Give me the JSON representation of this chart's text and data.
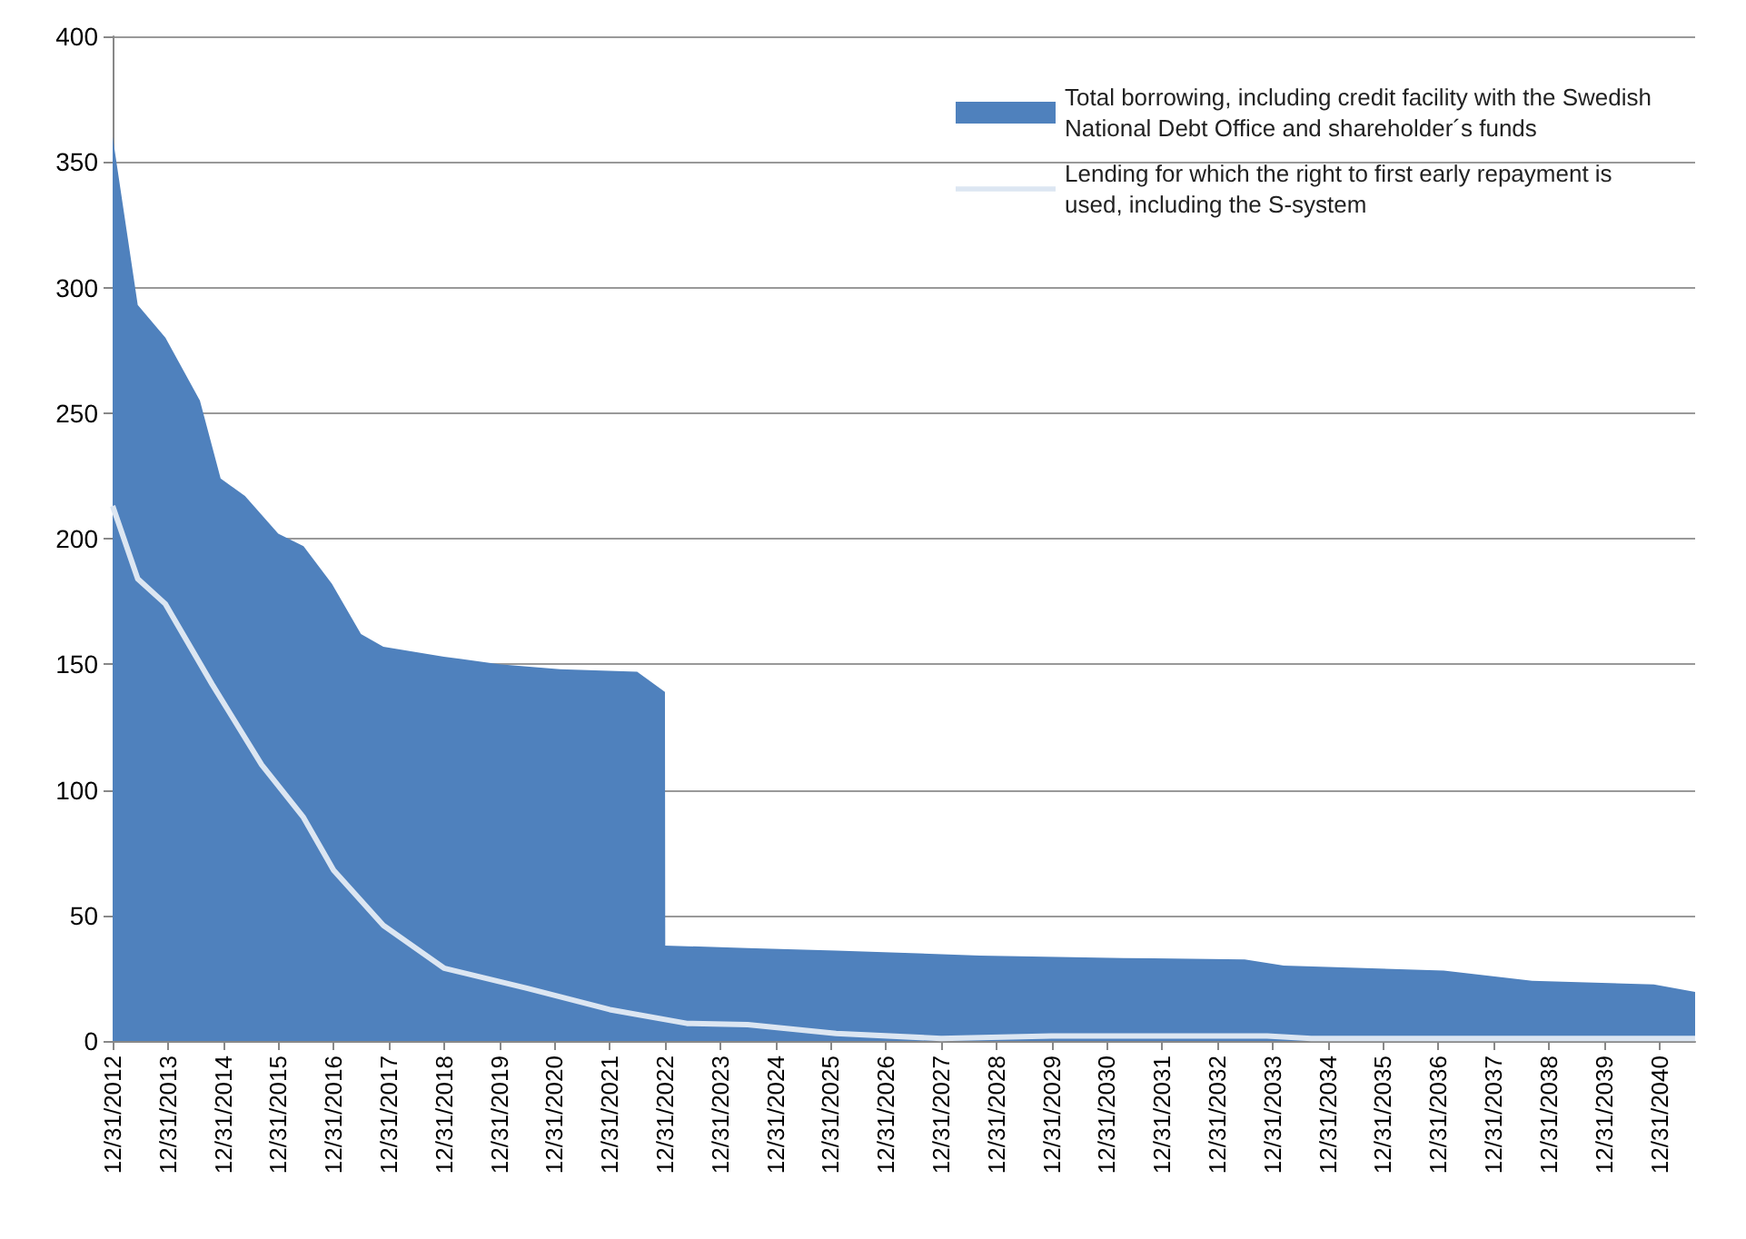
{
  "chart_data": {
    "type": "area",
    "series": [
      {
        "name": "Total borrowing, including credit facility with the Swedish National Debt Office and shareholder´s funds",
        "color": "#4f81bd",
        "x": [
          "2012-12-31",
          "2013-06-15",
          "2013-12-15",
          "2014-07-31",
          "2014-12-15",
          "2015-05-25",
          "2015-12-31",
          "2016-06-15",
          "2016-12-20",
          "2017-06-30",
          "2017-11-25",
          "2018-12-31",
          "2019-12-31",
          "2021-02-05",
          "2022-06-30",
          "2022-12-31",
          "2023-01-02",
          "2024-06-30",
          "2026-02-05",
          "2028-09-12",
          "2031-04-20",
          "2033-06-30",
          "2034-03-15",
          "2037-02-05",
          "2038-09-12",
          "2040-11-25",
          "2041-08-25"
        ],
        "values": [
          360,
          293,
          280,
          255,
          224,
          217,
          202,
          197,
          182,
          162,
          157,
          153,
          150,
          148,
          147,
          139,
          38,
          37,
          36,
          34,
          33,
          32.5,
          30,
          28,
          24,
          22.5,
          19.5
        ]
      },
      {
        "name": "Lending for which the right to first early repayment is used, including the S-system",
        "type": "line",
        "color": "#dce6f2",
        "x": [
          "2012-12-31",
          "2013-06-15",
          "2013-12-15",
          "2014-10-20",
          "2015-09-12",
          "2016-06-15",
          "2016-12-31",
          "2017-11-25",
          "2018-12-31",
          "2020-06-30",
          "2021-12-31",
          "2023-05-25",
          "2024-06-30",
          "2026-02-05",
          "2027-12-31",
          "2029-12-31",
          "2033-11-25",
          "2034-09-12",
          "2041-08-25"
        ],
        "values": [
          213,
          184,
          174,
          142,
          110,
          89,
          68,
          46,
          29,
          21,
          12.5,
          7,
          6.5,
          3,
          1,
          2,
          2,
          1,
          1
        ]
      }
    ],
    "xlim": [
      "2012-12-31",
      "2041-08-25"
    ],
    "xticks": [
      {
        "value": "2012-12-31",
        "label": "12/31/2012"
      },
      {
        "value": "2013-12-31",
        "label": "12/31/2013"
      },
      {
        "value": "2014-12-31",
        "label": "12/31/2014"
      },
      {
        "value": "2015-12-31",
        "label": "12/31/2015"
      },
      {
        "value": "2016-12-31",
        "label": "12/31/2016"
      },
      {
        "value": "2017-12-31",
        "label": "12/31/2017"
      },
      {
        "value": "2018-12-31",
        "label": "12/31/2018"
      },
      {
        "value": "2019-12-31",
        "label": "12/31/2019"
      },
      {
        "value": "2020-12-31",
        "label": "12/31/2020"
      },
      {
        "value": "2021-12-31",
        "label": "12/31/2021"
      },
      {
        "value": "2022-12-31",
        "label": "12/31/2022"
      },
      {
        "value": "2023-12-31",
        "label": "12/31/2023"
      },
      {
        "value": "2024-12-31",
        "label": "12/31/2024"
      },
      {
        "value": "2025-12-31",
        "label": "12/31/2025"
      },
      {
        "value": "2026-12-31",
        "label": "12/31/2026"
      },
      {
        "value": "2027-12-31",
        "label": "12/31/2027"
      },
      {
        "value": "2028-12-31",
        "label": "12/31/2028"
      },
      {
        "value": "2029-12-31",
        "label": "12/31/2029"
      },
      {
        "value": "2030-12-31",
        "label": "12/31/2030"
      },
      {
        "value": "2031-12-31",
        "label": "12/31/2031"
      },
      {
        "value": "2032-12-31",
        "label": "12/31/2032"
      },
      {
        "value": "2033-12-31",
        "label": "12/31/2033"
      },
      {
        "value": "2034-12-31",
        "label": "12/31/2034"
      },
      {
        "value": "2035-12-31",
        "label": "12/31/2035"
      },
      {
        "value": "2036-12-31",
        "label": "12/31/2036"
      },
      {
        "value": "2037-12-31",
        "label": "12/31/2037"
      },
      {
        "value": "2038-12-31",
        "label": "12/31/2038"
      },
      {
        "value": "2039-12-31",
        "label": "12/31/2039"
      },
      {
        "value": "2040-12-31",
        "label": "12/31/2040"
      }
    ],
    "ylim": [
      0,
      400
    ],
    "yticks": [
      0,
      50,
      100,
      150,
      200,
      250,
      300,
      350,
      400
    ],
    "grid": "y",
    "legend": "top right",
    "marker": "none"
  }
}
